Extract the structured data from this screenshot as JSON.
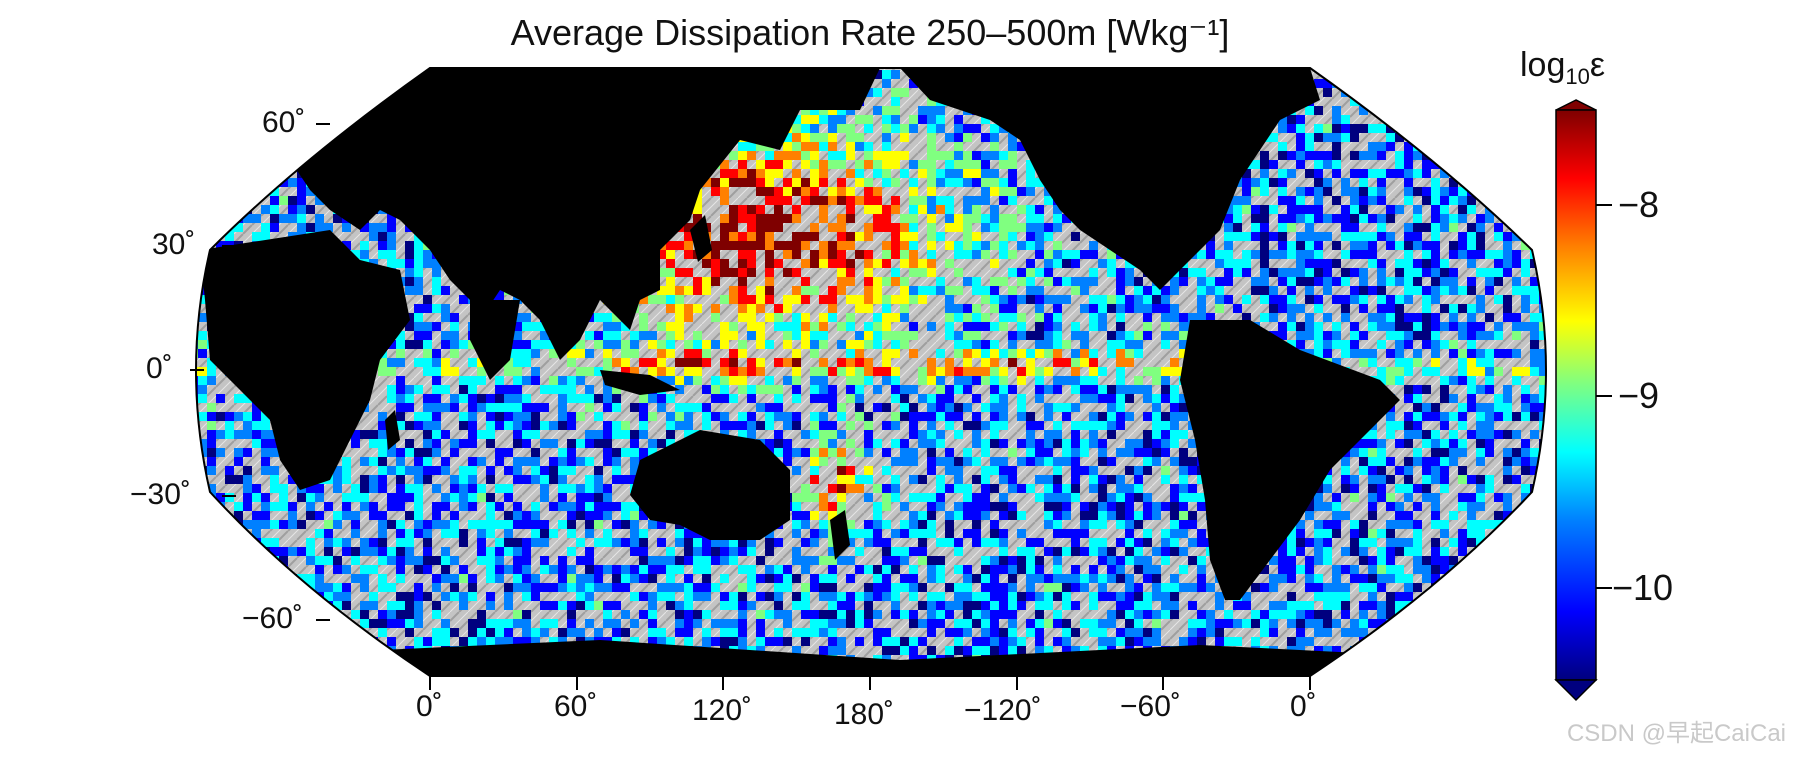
{
  "title": "Average Dissipation Rate 250–500m [Wkg⁻¹]",
  "latitude_labels": [
    "60˚",
    "30˚",
    "0˚",
    "−30˚",
    "−60˚"
  ],
  "longitude_labels": [
    "0˚",
    "60˚",
    "120˚",
    "180˚",
    "−120˚",
    "−60˚",
    "0˚"
  ],
  "colorbar": {
    "title_main": "log",
    "title_sub": "10",
    "title_symbol": "ε",
    "ticks": [
      "−8",
      "−9",
      "−10"
    ],
    "tick_values": [
      -8,
      -9,
      -10
    ],
    "range": [
      -10.5,
      -7.5
    ],
    "colors": [
      "#00007f",
      "#0000ff",
      "#0080ff",
      "#00ffff",
      "#80ff80",
      "#ffff00",
      "#ff8000",
      "#ff0000",
      "#7f0000"
    ]
  },
  "map": {
    "projection": "Robinson-like, Pacific-centered",
    "land_color": "#000000",
    "ocean_relief_color": "#bdbdbd"
  },
  "watermark": "CSDN @早起CaiCai"
}
